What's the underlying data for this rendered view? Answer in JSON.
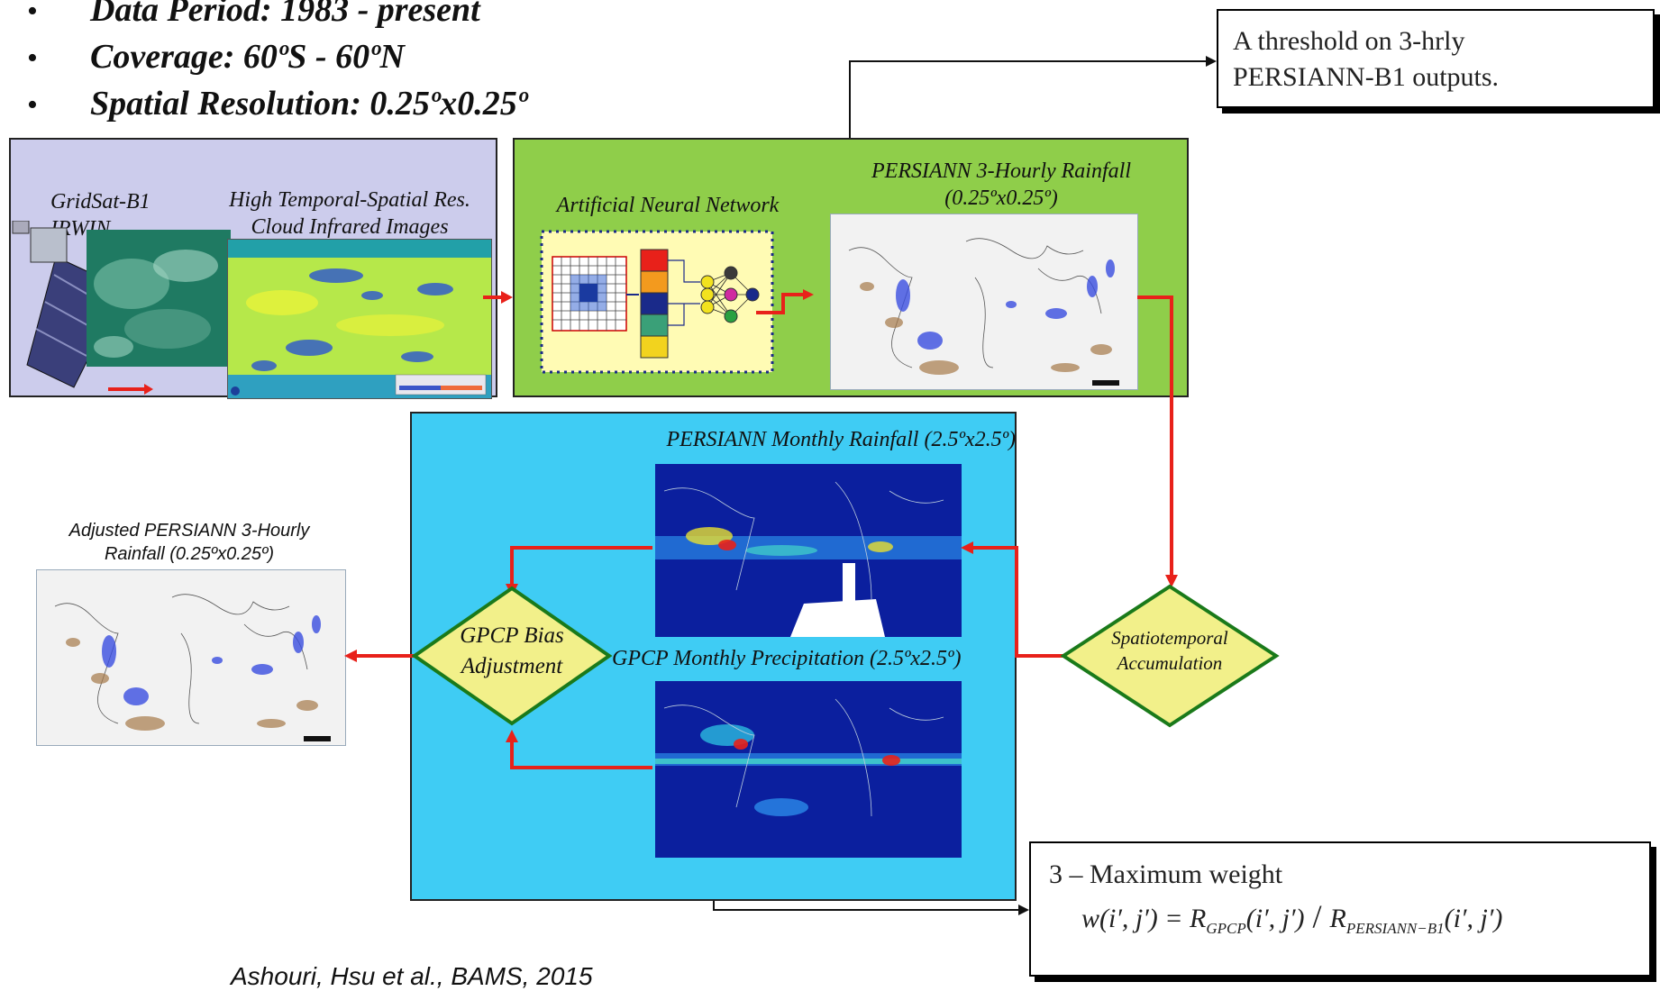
{
  "bullets": [
    {
      "text": "Data Period: 1983 - present"
    },
    {
      "text": "Coverage: 60ºS - 60ºN"
    },
    {
      "text": "Spatial Resolution: 0.25ºx0.25º"
    }
  ],
  "callout_top": {
    "line1": "A threshold on 3-hrly",
    "line2": "PERSIANN-B1 outputs."
  },
  "callout_bottom": {
    "title": "3 – Maximum weight",
    "w": "w(i′, j′) = ",
    "r1": "R",
    "sub1": "GPCP",
    "arg1": "(i′, j′)",
    "slash": " / ",
    "r2": "R",
    "sub2": "PERSIANN−B1",
    "arg2": "(i′, j′)"
  },
  "panel_input": {
    "label_gridsat": "GridSat-B1",
    "label_irwin": "IRWIN",
    "label_cloud1": "High Temporal-Spatial Res.",
    "label_cloud2": "Cloud Infrared Images"
  },
  "panel_ann": {
    "label_ann": "Artificial Neural Network",
    "label_rain1": "PERSIANN 3-Hourly Rainfall",
    "label_rain2": "(0.25ºx0.25º)"
  },
  "panel_monthly": {
    "label_persiann": "PERSIANN Monthly Rainfall (2.5ºx2.5º)",
    "label_gpcp": "GPCP Monthly Precipitation  (2.5ºx2.5º)"
  },
  "diamond_bias": {
    "line1": "GPCP Bias",
    "line2": "Adjustment"
  },
  "diamond_accum": {
    "line1": "Spatiotemporal",
    "line2": "Accumulation"
  },
  "adjusted": {
    "line1": "Adjusted PERSIANN 3-Hourly",
    "line2": "Rainfall (0.25ºx0.25º)"
  },
  "citation": "Ashouri, Hsu et al., BAMS, 2015",
  "colors": {
    "lavender": "#ccccec",
    "green": "#8fce4a",
    "cyan": "#3fccf4",
    "diamond": "#f2f08a",
    "arrow": "#e8211a"
  }
}
